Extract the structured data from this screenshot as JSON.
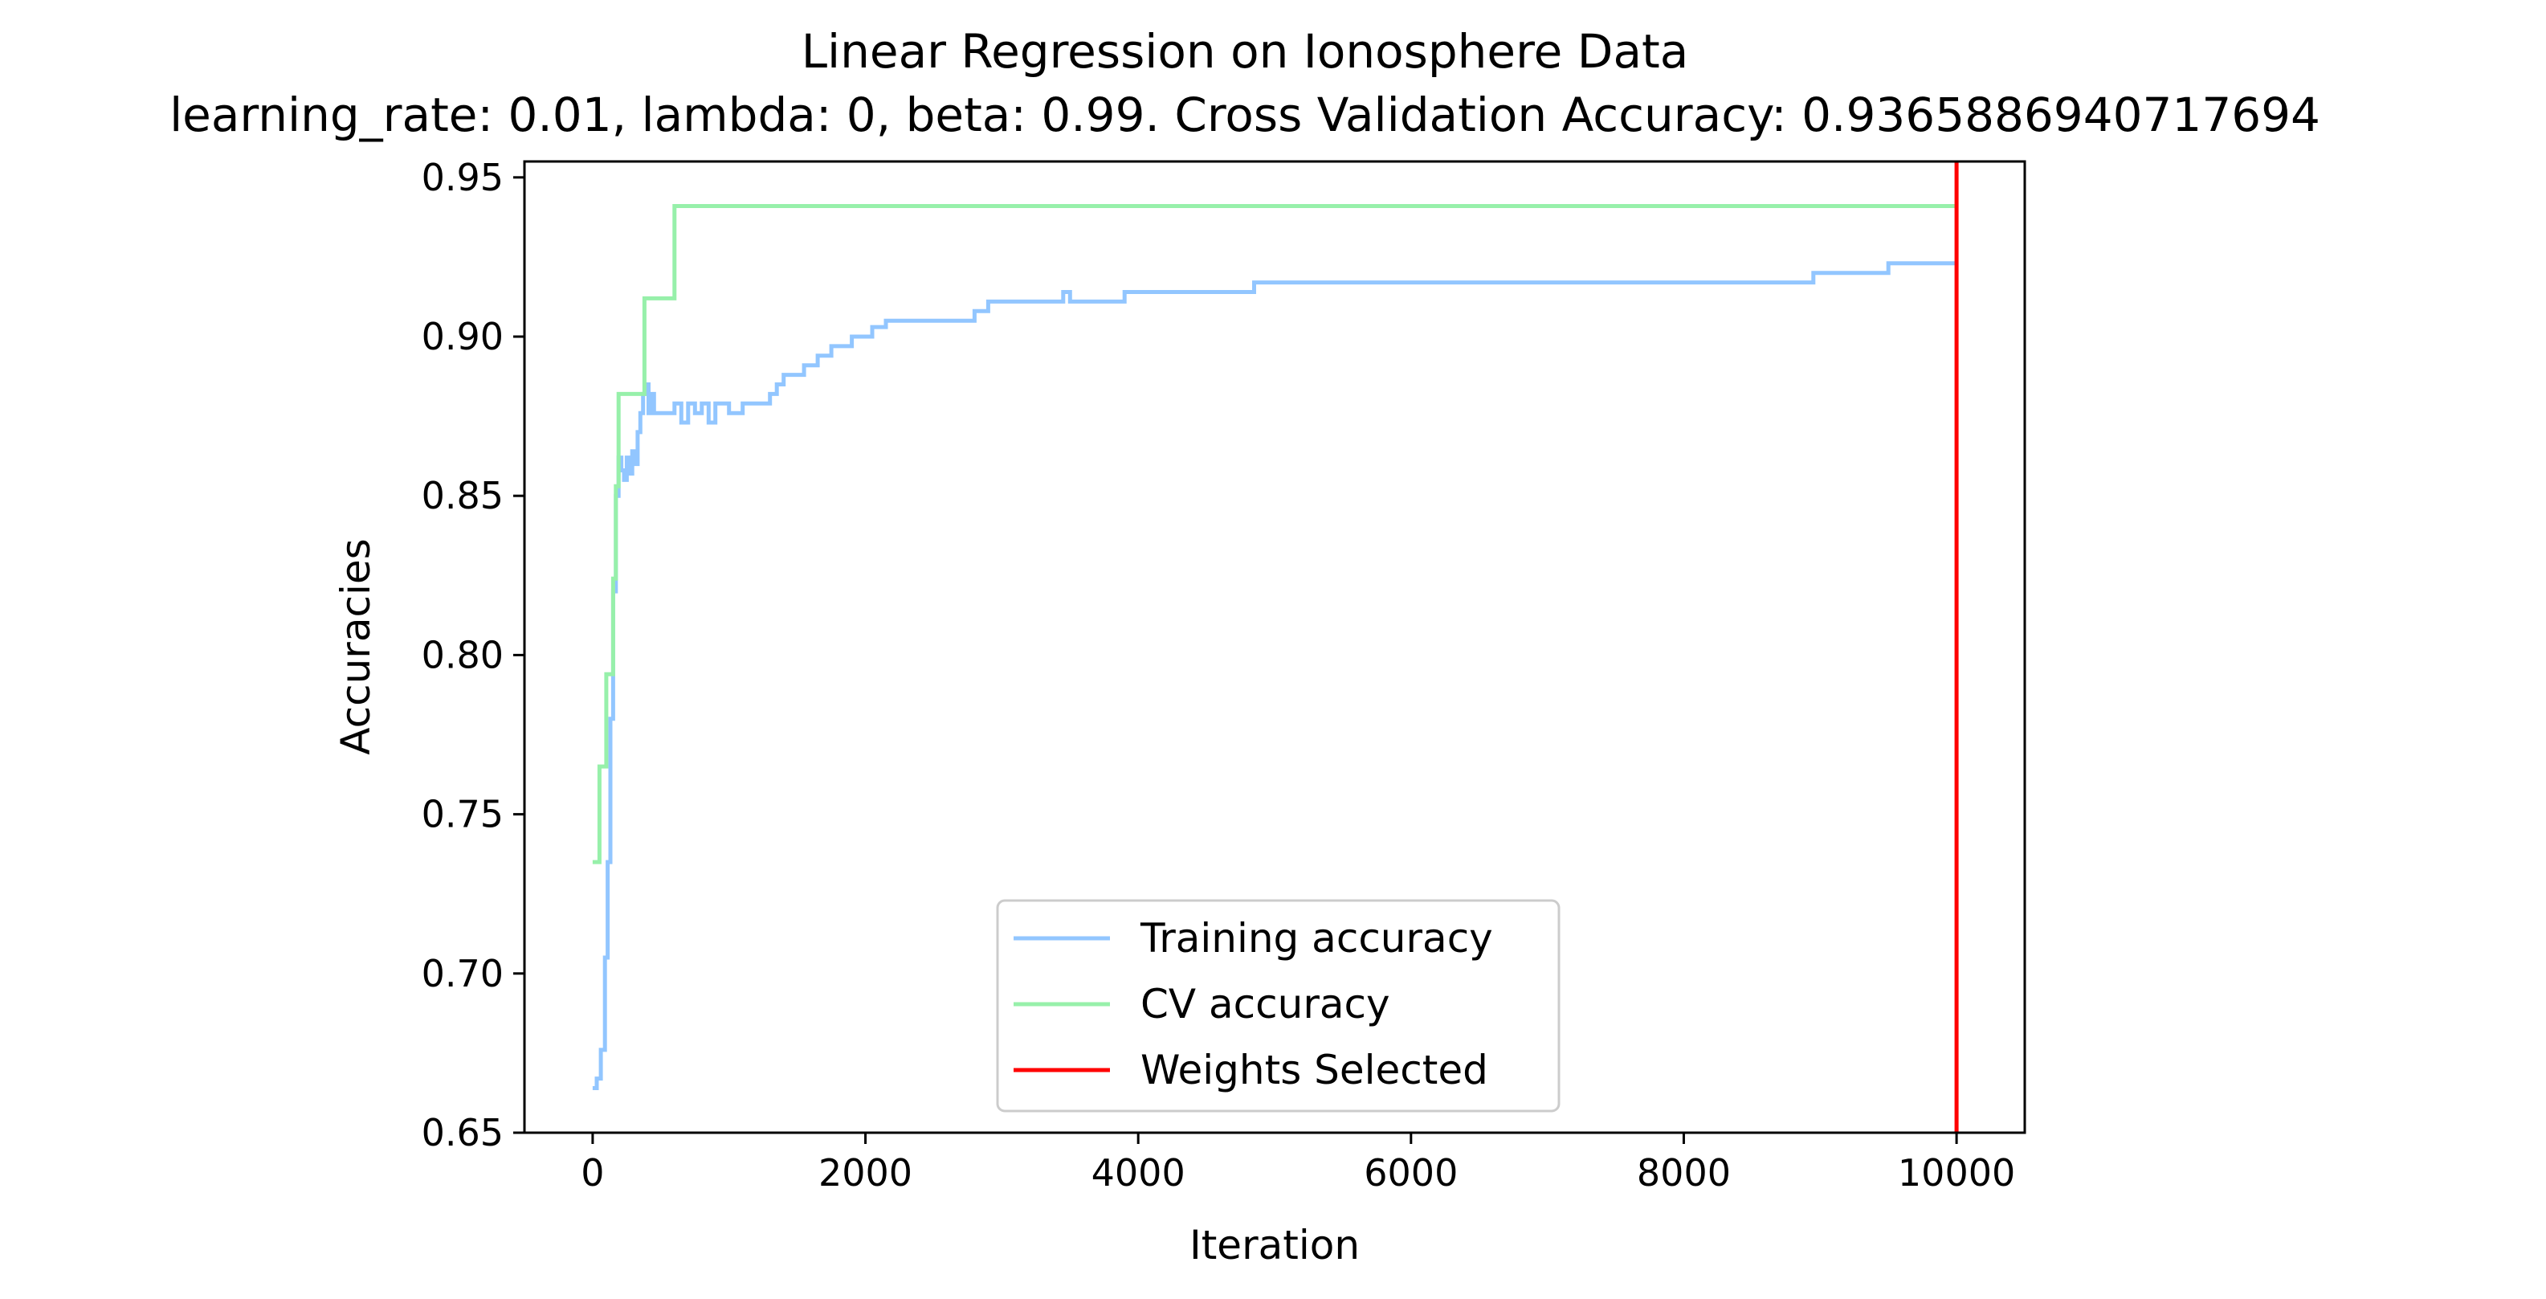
{
  "chart_data": {
    "type": "line",
    "title": "Linear Regression on Ionosphere Data",
    "subtitle": "learning_rate: 0.01, lambda: 0, beta: 0.99. Cross Validation Accuracy: 0.9365886940717694",
    "xlabel": "Iteration",
    "ylabel": "Accuracies",
    "xlim": [
      -500,
      10500
    ],
    "ylim": [
      0.65,
      0.955
    ],
    "x_ticks": [
      0,
      2000,
      4000,
      6000,
      8000,
      10000
    ],
    "x_tick_labels": [
      "0",
      "2000",
      "4000",
      "6000",
      "8000",
      "10000"
    ],
    "y_ticks": [
      0.65,
      0.7,
      0.75,
      0.8,
      0.85,
      0.9,
      0.95
    ],
    "y_tick_labels": [
      "0.65",
      "0.70",
      "0.75",
      "0.80",
      "0.85",
      "0.90",
      "0.95"
    ],
    "grid": false,
    "legend_position": "lower-center",
    "series": [
      {
        "name": "Training accuracy",
        "color": "#92c6ff",
        "step": true,
        "x": [
          0,
          30,
          60,
          90,
          110,
          130,
          150,
          170,
          190,
          210,
          230,
          250,
          270,
          290,
          310,
          330,
          350,
          370,
          390,
          410,
          430,
          450,
          480,
          550,
          600,
          650,
          700,
          750,
          800,
          850,
          900,
          1000,
          1100,
          1300,
          1350,
          1400,
          1550,
          1650,
          1750,
          1900,
          2050,
          2150,
          2500,
          2800,
          2850,
          2900,
          3450,
          3500,
          3550,
          3650,
          3900,
          4800,
          4850,
          8900,
          8950,
          9500,
          10000
        ],
        "y": [
          0.664,
          0.667,
          0.676,
          0.705,
          0.735,
          0.78,
          0.82,
          0.85,
          0.862,
          0.858,
          0.855,
          0.862,
          0.857,
          0.864,
          0.86,
          0.87,
          0.876,
          0.882,
          0.885,
          0.876,
          0.882,
          0.876,
          0.876,
          0.876,
          0.879,
          0.873,
          0.879,
          0.876,
          0.879,
          0.873,
          0.879,
          0.876,
          0.879,
          0.882,
          0.885,
          0.888,
          0.891,
          0.894,
          0.897,
          0.9,
          0.903,
          0.905,
          0.905,
          0.908,
          0.908,
          0.911,
          0.914,
          0.911,
          0.911,
          0.911,
          0.914,
          0.914,
          0.917,
          0.917,
          0.92,
          0.923,
          0.923
        ]
      },
      {
        "name": "CV accuracy",
        "color": "#97f0aa",
        "step": true,
        "x": [
          0,
          50,
          100,
          150,
          170,
          190,
          380,
          600,
          10000
        ],
        "y": [
          0.735,
          0.765,
          0.794,
          0.824,
          0.853,
          0.882,
          0.912,
          0.941,
          0.941
        ]
      }
    ],
    "vline": {
      "name": "Weights Selected",
      "x": 10000,
      "color": "#ff0000"
    },
    "legend": [
      {
        "label": "Training accuracy",
        "color": "#92c6ff"
      },
      {
        "label": "CV accuracy",
        "color": "#97f0aa"
      },
      {
        "label": "Weights Selected",
        "color": "#ff0000"
      }
    ]
  }
}
